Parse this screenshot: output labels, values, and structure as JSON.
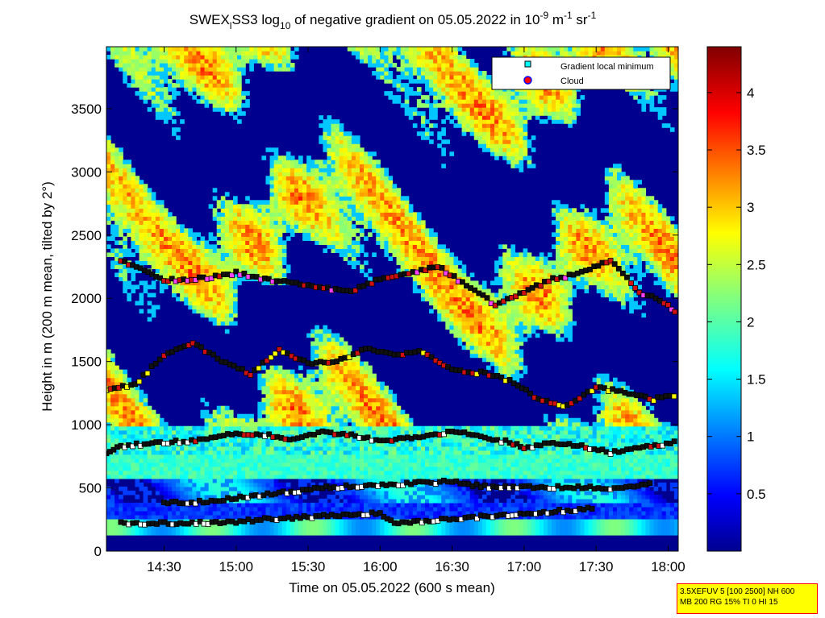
{
  "chart_data": {
    "type": "heatmap",
    "title": {
      "prefix": "SWEX",
      "sub1": "l",
      "mid": "SS3 log",
      "sub2": "10",
      "after": " of negative gradient on 05.05.2022 in 10",
      "sup1": "-9",
      "unit1": " m",
      "sup2": "-1",
      "unit2": " sr",
      "sup3": "-1"
    },
    "xlabel": "Time on 05.05.2022 (600 s mean)",
    "ylabel": "Height in m (200 m mean, tilted by 2°)",
    "x_ticks": [
      "14:30",
      "15:00",
      "15:30",
      "16:00",
      "16:30",
      "17:00",
      "17:30",
      "18:00"
    ],
    "x_tick_hours": [
      14.5,
      15.0,
      15.5,
      16.0,
      16.5,
      17.0,
      17.5,
      18.0
    ],
    "x_range_hours": [
      14.1,
      18.07
    ],
    "y_ticks": [
      "0",
      "500",
      "1000",
      "1500",
      "2000",
      "2500",
      "3000",
      "3500"
    ],
    "y_tick_values": [
      0,
      500,
      1000,
      1500,
      2000,
      2500,
      3000,
      3500
    ],
    "y_range": [
      0,
      3990
    ],
    "colorbar": {
      "range": [
        0,
        4.4
      ],
      "ticks": [
        "0.5",
        "1",
        "1.5",
        "2",
        "2.5",
        "3",
        "3.5",
        "4"
      ],
      "tick_values": [
        0.5,
        1,
        1.5,
        2,
        2.5,
        3,
        3.5,
        4
      ],
      "colormap": "jet"
    },
    "legend": {
      "position": "top-right",
      "entries": [
        {
          "label": "Gradient local minimum",
          "color": "#00ffff",
          "marker": "square"
        },
        {
          "label": "Cloud",
          "color": "#ff0000",
          "marker": "circle"
        }
      ]
    },
    "marker_colors": {
      "low": "#ffffff",
      "cloud": "#d01010",
      "mid": "#ffff00",
      "high": "#ff40ff"
    },
    "layers": [
      {
        "name": "surface",
        "points": [
          [
            14.1,
            130
          ],
          [
            18.07,
            130
          ]
        ]
      },
      {
        "name": "layer-200",
        "points": [
          [
            14.2,
            220
          ],
          [
            14.45,
            220
          ],
          [
            14.75,
            225
          ],
          [
            15.0,
            230
          ],
          [
            15.2,
            250
          ],
          [
            15.5,
            270
          ],
          [
            15.8,
            290
          ],
          [
            16.0,
            300
          ],
          [
            16.1,
            210
          ],
          [
            16.4,
            250
          ],
          [
            16.7,
            270
          ],
          [
            17.0,
            300
          ],
          [
            17.3,
            320
          ],
          [
            17.5,
            340
          ]
        ]
      },
      {
        "name": "layer-450",
        "points": [
          [
            14.5,
            380
          ],
          [
            14.8,
            390
          ],
          [
            15.0,
            420
          ],
          [
            15.3,
            460
          ],
          [
            15.6,
            500
          ],
          [
            15.9,
            520
          ],
          [
            16.5,
            550
          ],
          [
            16.7,
            510
          ],
          [
            17.6,
            500
          ],
          [
            17.9,
            530
          ]
        ]
      },
      {
        "name": "layer-850",
        "points": [
          [
            14.1,
            780
          ],
          [
            14.2,
            830
          ],
          [
            14.5,
            860
          ],
          [
            14.8,
            880
          ],
          [
            15.0,
            930
          ],
          [
            15.2,
            920
          ],
          [
            15.4,
            880
          ],
          [
            15.6,
            940
          ],
          [
            15.8,
            920
          ],
          [
            16.0,
            870
          ],
          [
            16.3,
            900
          ],
          [
            16.5,
            950
          ],
          [
            16.7,
            900
          ],
          [
            16.9,
            860
          ],
          [
            17.0,
            820
          ],
          [
            17.2,
            850
          ],
          [
            17.4,
            830
          ],
          [
            17.6,
            780
          ],
          [
            17.8,
            820
          ],
          [
            18.07,
            860
          ]
        ]
      },
      {
        "name": "layer-1300",
        "points": [
          [
            14.1,
            1280
          ],
          [
            14.3,
            1320
          ],
          [
            14.5,
            1550
          ],
          [
            14.7,
            1650
          ],
          [
            14.9,
            1500
          ],
          [
            15.1,
            1400
          ],
          [
            15.3,
            1600
          ],
          [
            15.5,
            1480
          ],
          [
            15.7,
            1500
          ],
          [
            15.9,
            1600
          ],
          [
            16.1,
            1550
          ],
          [
            16.3,
            1580
          ],
          [
            16.5,
            1430
          ],
          [
            16.7,
            1410
          ],
          [
            16.9,
            1350
          ],
          [
            17.1,
            1200
          ],
          [
            17.3,
            1150
          ],
          [
            17.5,
            1300
          ],
          [
            17.7,
            1250
          ],
          [
            17.9,
            1200
          ],
          [
            18.07,
            1240
          ]
        ]
      },
      {
        "name": "layer-2100",
        "points": [
          [
            14.2,
            2300
          ],
          [
            14.5,
            2140
          ],
          [
            14.8,
            2160
          ],
          [
            15.0,
            2200
          ],
          [
            15.2,
            2150
          ],
          [
            15.5,
            2100
          ],
          [
            15.8,
            2050
          ],
          [
            16.0,
            2150
          ],
          [
            16.2,
            2200
          ],
          [
            16.4,
            2250
          ],
          [
            16.6,
            2100
          ],
          [
            16.8,
            1950
          ],
          [
            17.0,
            2050
          ],
          [
            17.2,
            2150
          ],
          [
            17.4,
            2200
          ],
          [
            17.6,
            2300
          ],
          [
            17.8,
            2050
          ],
          [
            18.0,
            1950
          ],
          [
            18.07,
            1870
          ]
        ]
      }
    ]
  },
  "info_box": {
    "line1": "3.5XEFUV 5 [100 2500] NH 600",
    "line2": "MB 200 RG 15% TI 0 HI 15"
  }
}
